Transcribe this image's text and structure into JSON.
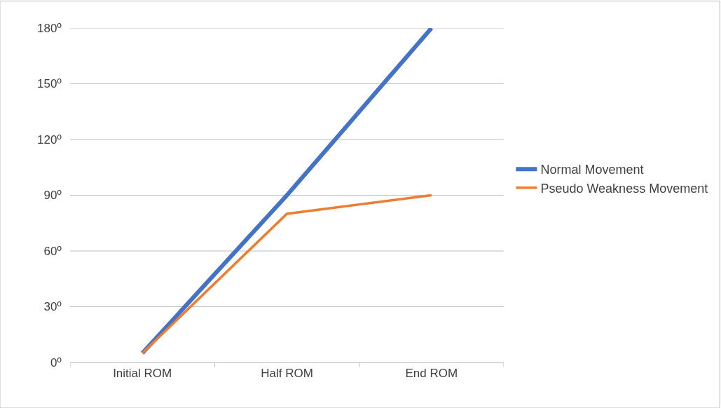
{
  "chart_data": {
    "type": "line",
    "categories": [
      "Initial ROM",
      "Half ROM",
      "End ROM"
    ],
    "series": [
      {
        "name": "Normal Movement",
        "color": "#4472c4",
        "values": [
          5,
          90,
          180
        ]
      },
      {
        "name": "Pseudo Weakness Movement",
        "color": "#ed7d31",
        "values": [
          5,
          80,
          90
        ]
      }
    ],
    "ylim": [
      0,
      180
    ],
    "yticks": [
      {
        "value": 0,
        "label": "0º"
      },
      {
        "value": 30,
        "label": "30º"
      },
      {
        "value": 60,
        "label": "60º"
      },
      {
        "value": 90,
        "label": "90º"
      },
      {
        "value": 120,
        "label": "120º"
      },
      {
        "value": 150,
        "label": "150º"
      },
      {
        "value": 180,
        "label": "180º"
      }
    ],
    "grid": "y",
    "legend": "right",
    "marker": "none",
    "line_style": "solid"
  }
}
